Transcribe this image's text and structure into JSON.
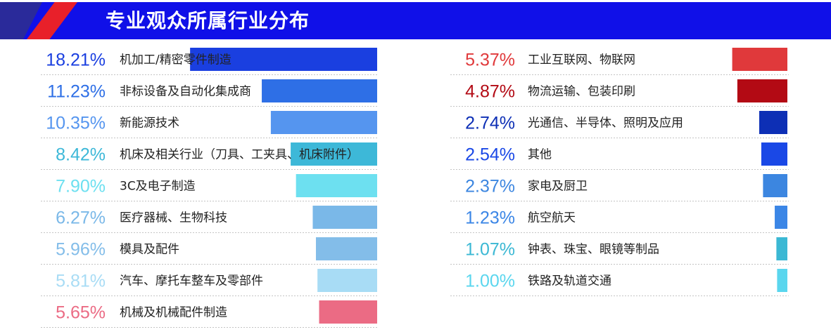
{
  "header": {
    "title": "专业观众所属行业分布",
    "colors": {
      "bar": "#1010e8",
      "stripe_dark": "#2a2a9a",
      "stripe_red": "#e8202a"
    }
  },
  "chart_data": [
    {
      "type": "bar",
      "orientation": "horizontal",
      "title": "",
      "categories": [
        "机加工/精密零件制造",
        "非标设备及自动化集成商",
        "新能源技术",
        "机床及相关行业（刀具、工夹具、机床附件）",
        "3C及电子制造",
        "医疗器械、生物科技",
        "模具及配件",
        "汽车、摩托车整车及零部件",
        "机械及机械配件制造"
      ],
      "values": [
        18.21,
        11.23,
        10.35,
        8.42,
        7.9,
        6.27,
        5.96,
        5.81,
        5.65
      ],
      "value_labels": [
        "18.21%",
        "11.23%",
        "10.35%",
        "8.42%",
        "7.90%",
        "6.27%",
        "5.96%",
        "5.81%",
        "5.65%"
      ],
      "colors": [
        "#1a3fe0",
        "#2e6fe6",
        "#5595ef",
        "#3db8d8",
        "#6de0f0",
        "#7ab8e8",
        "#83bde9",
        "#a8dcf5",
        "#eb6b84"
      ],
      "label_colors": [
        "#1a3fe0",
        "#2e6fe6",
        "#5595ef",
        "#3db8d8",
        "#6de0f0",
        "#7ab8e8",
        "#83bde9",
        "#a8dcf5",
        "#eb6b84"
      ],
      "unit": "%"
    },
    {
      "type": "bar",
      "orientation": "horizontal",
      "title": "",
      "categories": [
        "工业互联网、物联网",
        "物流运输、包装印刷",
        "光通信、半导体、照明及应用",
        "其他",
        "家电及厨卫",
        "航空航天",
        "钟表、珠宝、眼镜等制品",
        "铁路及轨道交通"
      ],
      "values": [
        5.37,
        4.87,
        2.74,
        2.54,
        2.37,
        1.23,
        1.07,
        1.0
      ],
      "value_labels": [
        "5.37%",
        "4.87%",
        "2.74%",
        "2.54%",
        "2.37%",
        "1.23%",
        "1.07%",
        "1.00%"
      ],
      "colors": [
        "#e0393b",
        "#b30a14",
        "#0d2fb5",
        "#1a48e6",
        "#3c86e0",
        "#3b86e6",
        "#3bb8d4",
        "#5ad6ee"
      ],
      "label_colors": [
        "#e0393b",
        "#b30a14",
        "#0d2fb5",
        "#1a48e6",
        "#3c86e0",
        "#3b86e6",
        "#3bb8d4",
        "#5ad6ee"
      ],
      "unit": "%"
    }
  ]
}
